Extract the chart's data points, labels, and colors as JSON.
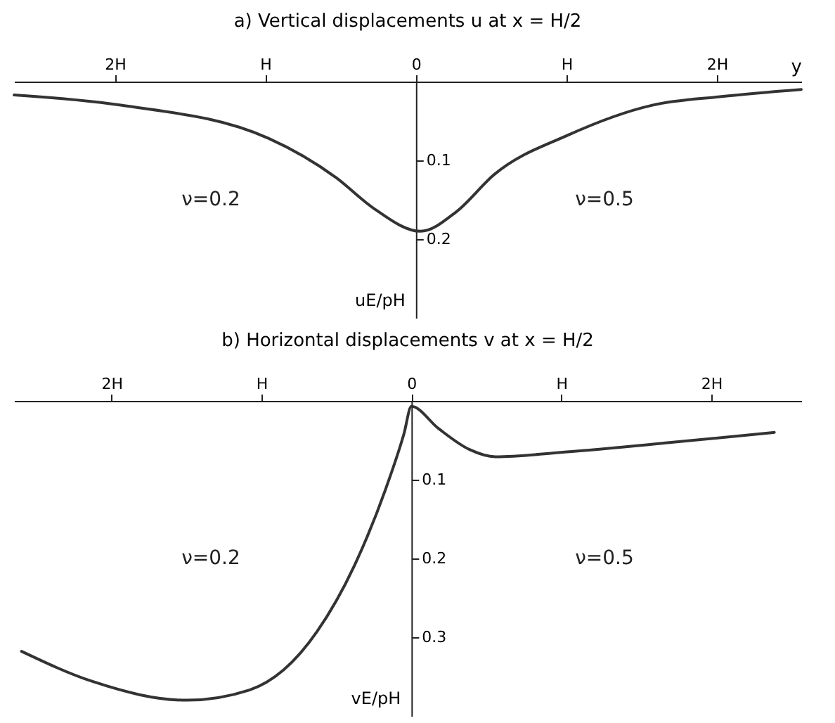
{
  "chart_data": [
    {
      "type": "line",
      "title": "a) Vertical displacements u at x = H/2",
      "xlabel": "y",
      "ylabel": "uE/pH",
      "x": [
        -2.67,
        -1.96,
        -0.98,
        -0.53,
        -0.28,
        0.03,
        0.27,
        0.52,
        1.01,
        1.57,
        2.03,
        2.56
      ],
      "series": [
        {
          "color": "#333333",
          "values": [
            0.017,
            0.03,
            0.072,
            0.122,
            0.161,
            0.19,
            0.165,
            0.118,
            0.068,
            0.03,
            0.019,
            0.01
          ]
        }
      ],
      "xlim": [
        -2.67,
        2.56
      ],
      "xticks": [
        {
          "value": -2,
          "label": "2H"
        },
        {
          "value": -1,
          "label": "H"
        },
        0,
        {
          "value": 1,
          "label": "H"
        },
        {
          "value": 2,
          "label": "2H"
        }
      ],
      "ylim": [
        0.3,
        0
      ],
      "yticks": [
        0.1,
        0.2
      ],
      "grid": false,
      "annotations": [
        "ν=0.2",
        "ν=0.5"
      ]
    },
    {
      "type": "line",
      "title": "b) Horizontal displacements v at x = H/2",
      "ylabel": "vE/pH",
      "x": [
        -2.6,
        -2.13,
        -1.5,
        -1.08,
        -0.63,
        -0.38,
        -0.17,
        -0.05,
        0,
        0.18,
        0.39,
        0.56,
        1.02,
        1.72,
        2.42
      ],
      "series": [
        {
          "color": "#333333",
          "values": [
            0.318,
            0.356,
            0.38,
            0.367,
            0.293,
            0.209,
            0.111,
            0.042,
            0.007,
            0.035,
            0.062,
            0.071,
            0.065,
            0.053,
            0.04
          ]
        }
      ],
      "xlim": [
        -2.65,
        2.6
      ],
      "xticks": [
        {
          "value": -2,
          "label": "2H"
        },
        {
          "value": -1,
          "label": "H"
        },
        0,
        {
          "value": 1,
          "label": "H"
        },
        {
          "value": 2,
          "label": "2H"
        }
      ],
      "ylim": [
        0.4,
        0
      ],
      "yticks": [
        0.1,
        0.2,
        0.3
      ],
      "grid": false,
      "annotations": [
        "ν=0.2",
        "ν=0.5"
      ]
    }
  ]
}
